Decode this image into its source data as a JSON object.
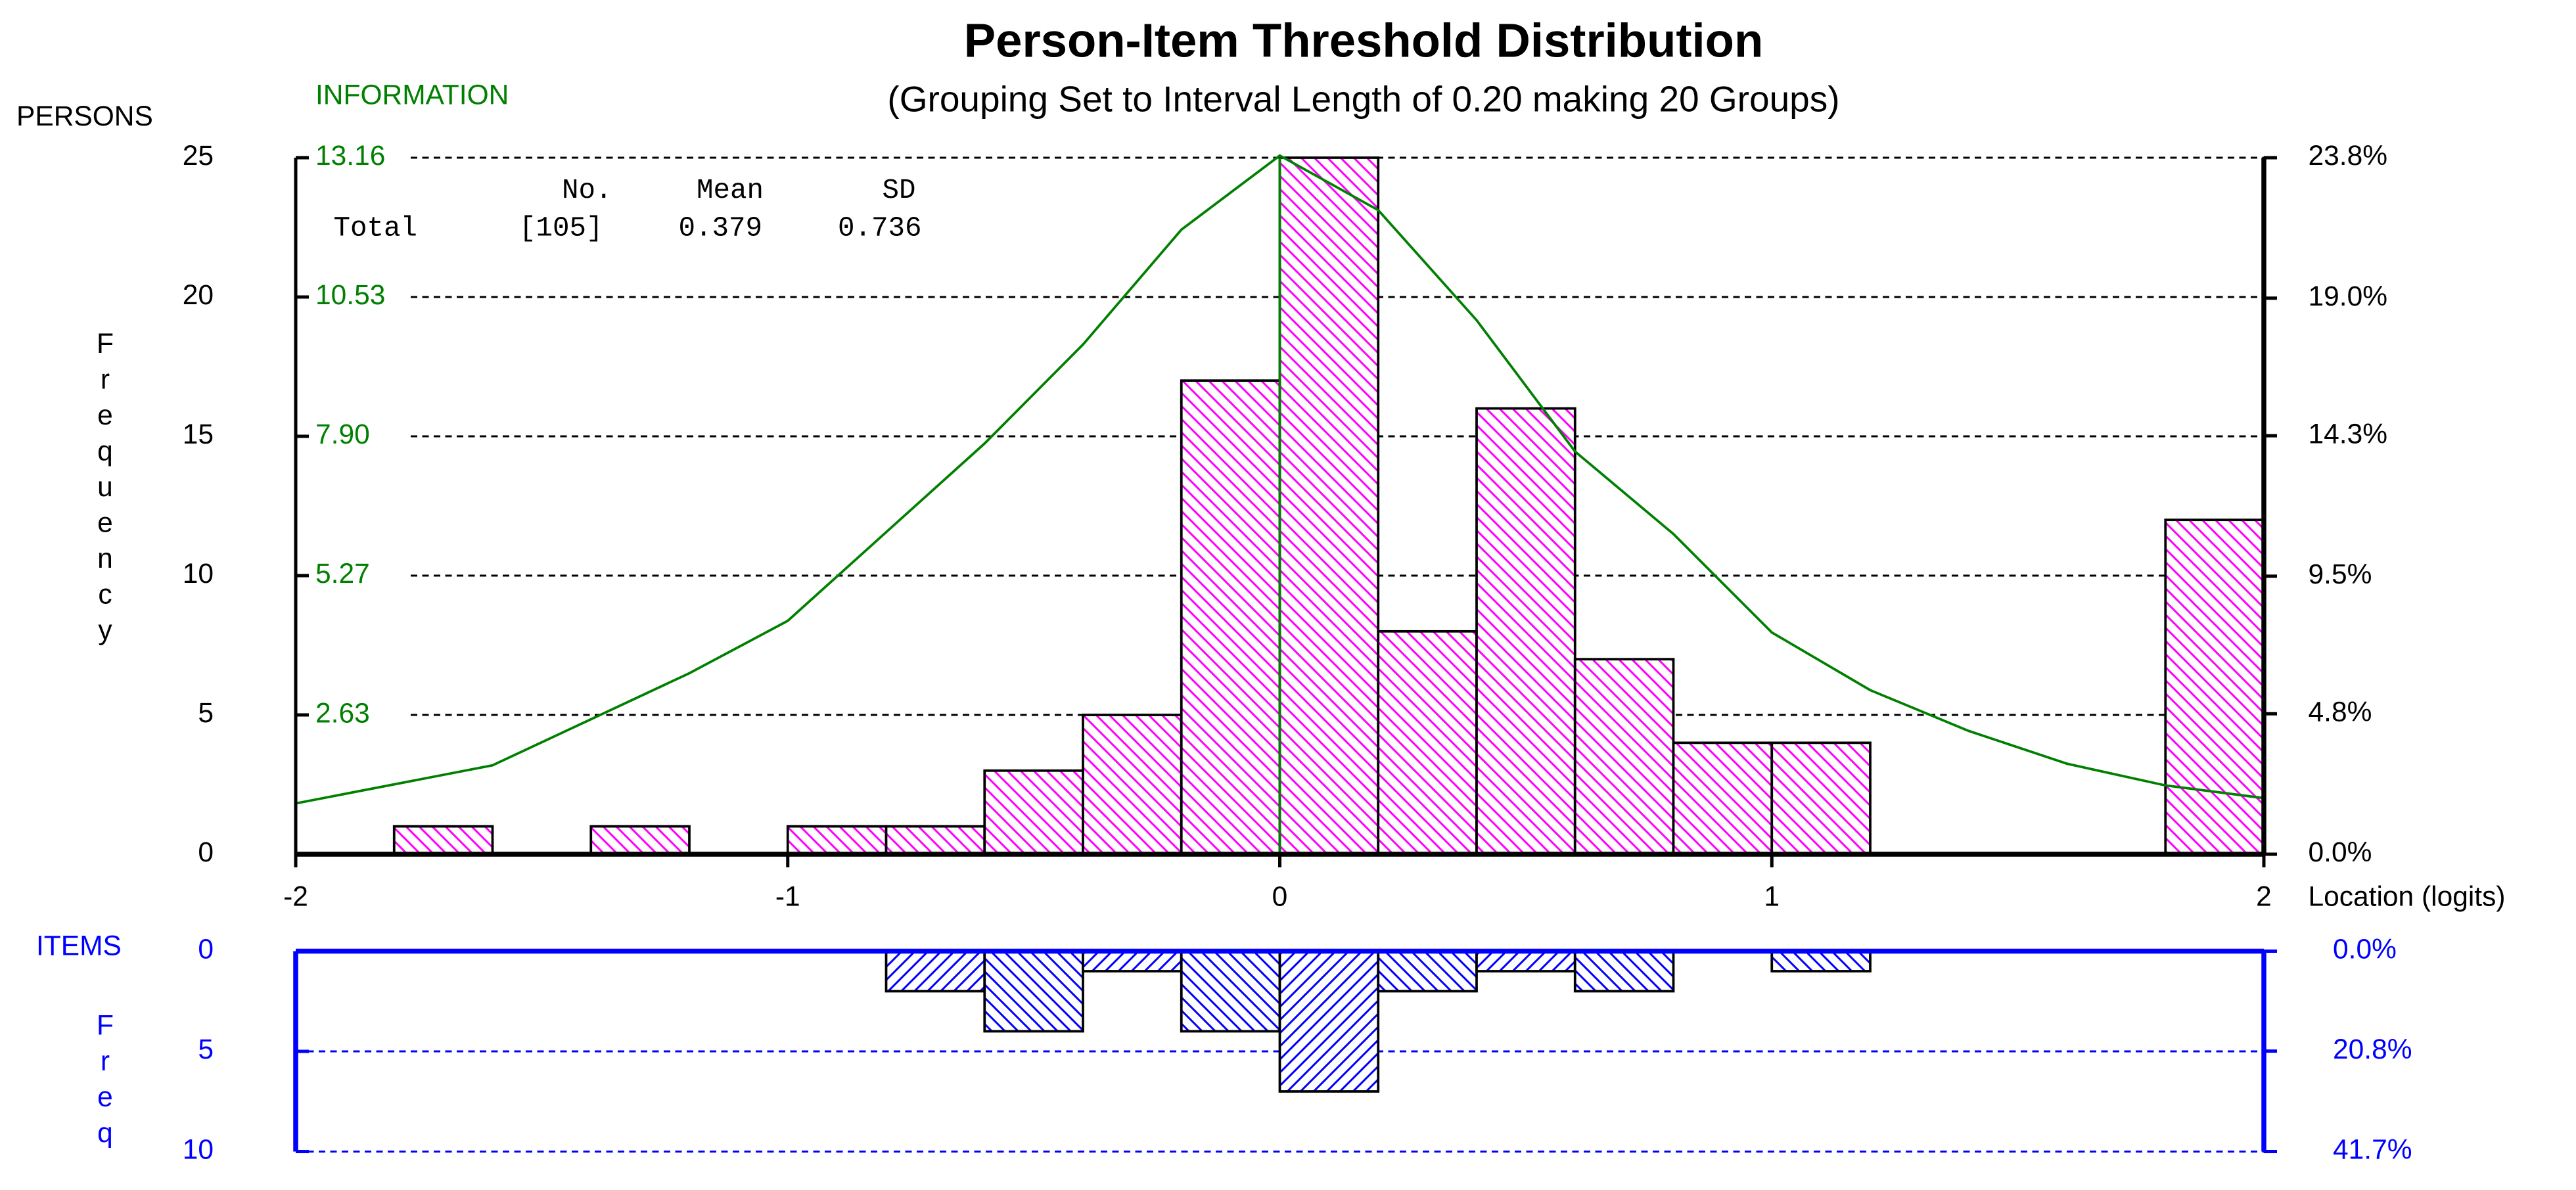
{
  "chart_data": [
    {
      "type": "histogram",
      "title": "Person-Item Threshold Distribution",
      "subtitle": "(Grouping Set to Interval Length of  0.20  making  20  Groups)",
      "y_group_label": "PERSONS",
      "y_label": "Frequency",
      "info_label": "INFORMATION",
      "xlabel": "Location (logits)",
      "stats": {
        "headers": [
          "No.",
          "Mean",
          "SD"
        ],
        "row": [
          "Total",
          "[105]",
          "0.379",
          "0.736"
        ]
      },
      "bins": [
        -2,
        -1.8,
        -1.6,
        -1.4,
        -1.2,
        -1,
        -0.8,
        -0.6,
        -0.4,
        -0.2,
        0,
        0.2,
        0.4,
        0.6,
        0.8,
        1,
        1.2,
        1.4,
        1.6,
        1.8,
        2
      ],
      "counts": [
        0,
        1,
        0,
        1,
        0,
        1,
        1,
        3,
        5,
        17,
        25,
        8,
        16,
        7,
        4,
        4,
        0,
        0,
        0,
        12
      ],
      "color": "#ff00ff",
      "series": [
        {
          "type": "line",
          "axis": "info",
          "color": "#008000",
          "x": [
            -2,
            -1.6,
            -1.2,
            -1,
            -0.6,
            -0.4,
            -0.2,
            0,
            0.2,
            0.4,
            0.6,
            0.8,
            1,
            1.2,
            1.4,
            1.6,
            1.8,
            2
          ],
          "values": [
            0.96,
            1.68,
            3.42,
            4.41,
            7.76,
            9.63,
            11.8,
            13.2,
            12.17,
            10.09,
            7.61,
            6.05,
            4.19,
            3.1,
            2.33,
            1.71,
            1.3,
            1.06
          ]
        }
      ],
      "ref_line_x": 0,
      "xlim": [
        -2,
        2
      ],
      "xticks": [
        -2,
        -1,
        0,
        1,
        2
      ],
      "ylim": [
        0,
        25
      ],
      "yticks": [
        0,
        5,
        10,
        15,
        20,
        25
      ],
      "info_lim": [
        0,
        13.16
      ],
      "info_ticks": [
        2.63,
        5.27,
        {
          "value": 7.9,
          "label": "7.90"
        },
        10.53,
        13.16
      ],
      "y2lim": [
        0,
        23.8
      ],
      "y2ticks": [
        {
          "value": 0,
          "label": "0.0%"
        },
        {
          "value": 4.8,
          "label": "4.8%"
        },
        {
          "value": 9.5,
          "label": "9.5%"
        },
        {
          "value": 14.3,
          "label": "14.3%"
        },
        {
          "value": 19,
          "label": "19.0%"
        },
        {
          "value": 23.8,
          "label": "23.8%"
        }
      ],
      "grid": true
    },
    {
      "type": "histogram",
      "y_group_label": "ITEMS",
      "y_label": "Freq",
      "bins": [
        -2,
        -1.8,
        -1.6,
        -1.4,
        -1.2,
        -1,
        -0.8,
        -0.6,
        -0.4,
        -0.2,
        0,
        0.2,
        0.4,
        0.6,
        0.8,
        1,
        1.2,
        1.4,
        1.6,
        1.8,
        2
      ],
      "counts": [
        0,
        0,
        0,
        0,
        0,
        0,
        2,
        4,
        1,
        4,
        7,
        2,
        1,
        2,
        0,
        1,
        0,
        0,
        0,
        0
      ],
      "color": "#0000ff",
      "xlim": [
        -2,
        2
      ],
      "ylim": [
        0,
        10
      ],
      "yticks": [
        0,
        5,
        10
      ],
      "y2lim": [
        0,
        41.7
      ],
      "y2ticks": [
        {
          "value": 0,
          "label": "0.0%"
        },
        {
          "value": 20.8,
          "label": "20.8%"
        },
        {
          "value": 41.7,
          "label": "41.7%"
        }
      ],
      "grid": true
    }
  ]
}
